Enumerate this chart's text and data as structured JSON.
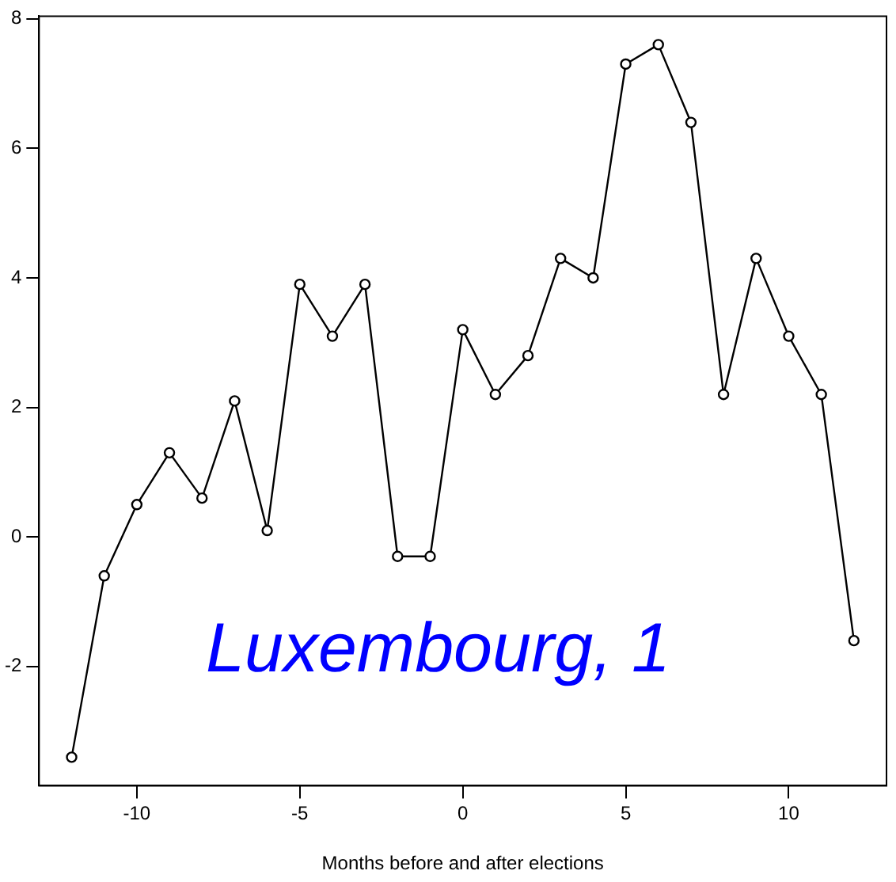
{
  "chart_data": {
    "type": "line",
    "xlabel": "Months before and after elections",
    "annotations": [
      "Luxembourg, 1"
    ],
    "x": [
      -12,
      -11,
      -10,
      -9,
      -8,
      -7,
      -6,
      -5,
      -4,
      -3,
      -2,
      -1,
      0,
      1,
      2,
      3,
      4,
      5,
      6,
      7,
      8,
      9,
      10,
      11,
      12
    ],
    "series": [
      {
        "color": "#000000",
        "values": [
          -3.4,
          -0.6,
          0.5,
          1.3,
          0.6,
          2.1,
          0.1,
          3.9,
          3.1,
          3.9,
          -0.3,
          -0.3,
          3.2,
          2.2,
          2.8,
          4.3,
          4.0,
          7.3,
          7.6,
          6.4,
          2.2,
          4.3,
          3.1,
          2.2,
          -1.6
        ]
      }
    ],
    "xlim": [
      -13,
      13
    ],
    "ylim": [
      -3.84,
      8.04
    ],
    "xticks": [
      -10,
      -5,
      0,
      5,
      10
    ],
    "yticks": [
      -2,
      0,
      2,
      4,
      6,
      8
    ],
    "grid": false,
    "legend": false,
    "marker": "circle",
    "line_style": "solid"
  }
}
